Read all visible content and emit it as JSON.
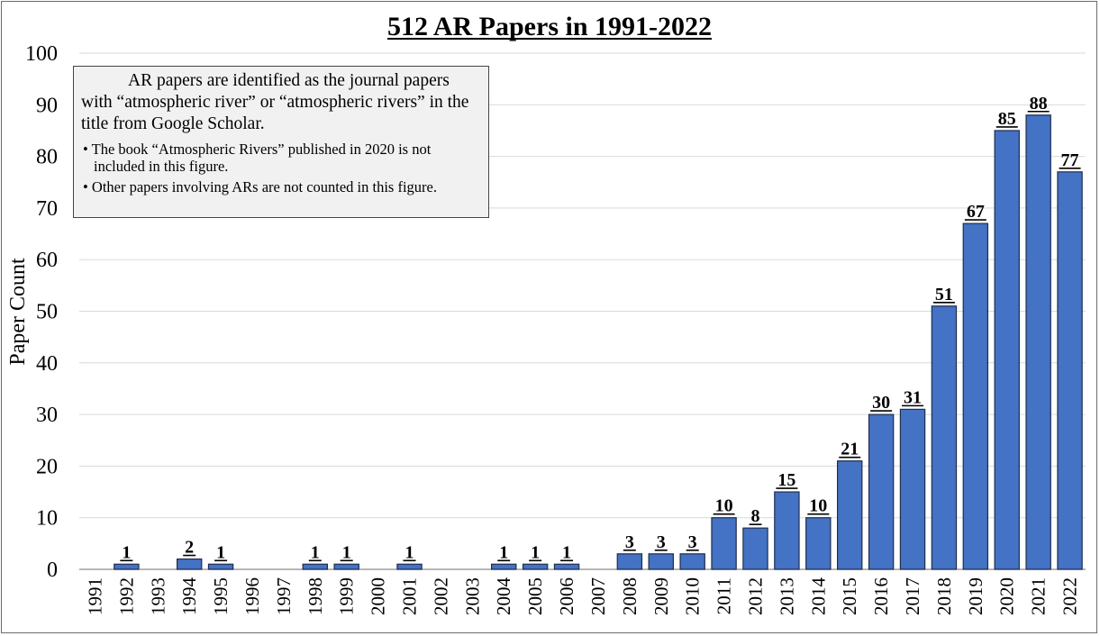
{
  "chart_data": {
    "type": "bar",
    "title": "512 AR Papers in 1991-2022",
    "xlabel": "",
    "ylabel": "Paper Count",
    "ylim": [
      0,
      100
    ],
    "yticks": [
      0,
      10,
      20,
      30,
      40,
      50,
      60,
      70,
      80,
      90,
      100
    ],
    "grid": true,
    "categories": [
      "1991",
      "1992",
      "1993",
      "1994",
      "1995",
      "1996",
      "1997",
      "1998",
      "1999",
      "2000",
      "2001",
      "2002",
      "2003",
      "2004",
      "2005",
      "2006",
      "2007",
      "2008",
      "2009",
      "2010",
      "2011",
      "2012",
      "2013",
      "2014",
      "2015",
      "2016",
      "2017",
      "2018",
      "2019",
      "2020",
      "2021",
      "2022"
    ],
    "values": [
      0,
      1,
      0,
      2,
      1,
      0,
      0,
      1,
      1,
      0,
      1,
      0,
      0,
      1,
      1,
      1,
      0,
      3,
      3,
      3,
      10,
      8,
      15,
      10,
      21,
      30,
      31,
      51,
      67,
      85,
      88,
      77
    ],
    "bar_color": "#4472c4",
    "bar_edge_color": "#1f2d4d"
  },
  "note": {
    "main": "AR papers are identified as the journal papers with “atmospheric river” or “atmospheric rivers” in the title from Google Scholar.",
    "bullets": [
      "The book “Atmospheric Rivers” published in 2020 is not included in this figure.",
      "Other papers involving ARs are not counted in this figure."
    ]
  }
}
